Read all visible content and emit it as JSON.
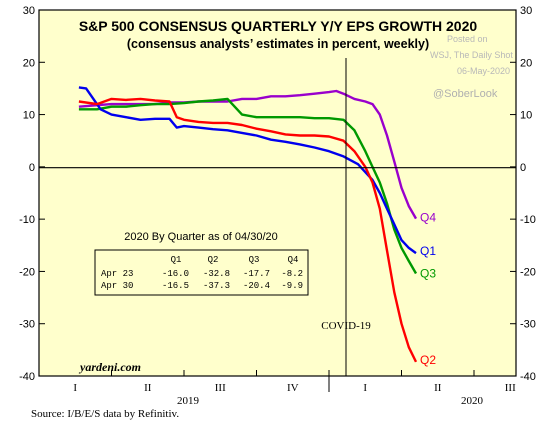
{
  "chart_data": {
    "type": "line",
    "title": "S&P 500 CONSENSUS QUARTERLY Y/Y EPS GROWTH 2020",
    "subtitle": "(consensus analysts’ estimates in percent, weekly)",
    "ylim": [
      -40,
      30
    ],
    "y_ticks": [
      "30",
      "20",
      "10",
      "0",
      "-10",
      "-20",
      "-30",
      "-40"
    ],
    "x_quarter_labels": [
      "I",
      "II",
      "III",
      "IV",
      "I",
      "II",
      "III"
    ],
    "x_year_labels": [
      "2019",
      "2020"
    ],
    "grid": false,
    "event_marker": "COVID-19",
    "brand": "yardeni.com",
    "source": "Source: I/B/E/S data by Refinitiv.",
    "watermark": [
      "Posted on",
      "WSJ, The Daily Shot",
      "06-May-2020"
    ],
    "handle": "@SoberLook",
    "colors": {
      "background": "#ffffcc",
      "Q1": "#0000ee",
      "Q2": "#ff0000",
      "Q3": "#009900",
      "Q4": "#9900cc"
    },
    "series": [
      {
        "name": "Q1",
        "x": [
          0.55,
          0.65,
          0.75,
          0.85,
          1.0,
          1.2,
          1.4,
          1.6,
          1.8,
          1.9,
          2.0,
          2.2,
          2.4,
          2.6,
          2.8,
          3.0,
          3.2,
          3.4,
          3.6,
          3.8,
          4.0,
          4.2,
          4.4,
          4.6,
          4.7,
          4.8,
          4.9,
          5.0,
          5.1,
          5.2
        ],
        "values": [
          15.2,
          15.0,
          13.0,
          11.0,
          10.0,
          9.5,
          9.0,
          9.2,
          9.2,
          7.5,
          7.8,
          7.5,
          7.2,
          7.0,
          6.5,
          6.0,
          5.2,
          4.8,
          4.3,
          3.7,
          3.0,
          2.0,
          0.5,
          -2.5,
          -5.0,
          -8.0,
          -11.0,
          -14.0,
          -15.5,
          -16.5
        ]
      },
      {
        "name": "Q2",
        "x": [
          0.55,
          0.8,
          1.0,
          1.2,
          1.4,
          1.6,
          1.8,
          1.9,
          2.0,
          2.2,
          2.4,
          2.6,
          2.8,
          3.0,
          3.2,
          3.4,
          3.6,
          3.8,
          4.0,
          4.2,
          4.35,
          4.5,
          4.6,
          4.7,
          4.8,
          4.9,
          5.0,
          5.1,
          5.2
        ],
        "values": [
          12.5,
          12.0,
          13.0,
          12.8,
          13.0,
          12.7,
          12.5,
          9.5,
          9.0,
          8.6,
          8.4,
          8.4,
          8.0,
          7.3,
          6.8,
          6.2,
          6.0,
          6.0,
          5.8,
          5.0,
          3.0,
          0.0,
          -3.0,
          -8.0,
          -16.0,
          -24.0,
          -30.0,
          -34.5,
          -37.3
        ]
      },
      {
        "name": "Q3",
        "x": [
          0.55,
          0.8,
          1.0,
          1.2,
          1.4,
          1.6,
          1.8,
          2.0,
          2.2,
          2.4,
          2.6,
          2.8,
          3.0,
          3.2,
          3.4,
          3.6,
          3.8,
          4.0,
          4.2,
          4.35,
          4.5,
          4.6,
          4.7,
          4.8,
          4.9,
          5.0,
          5.1,
          5.2
        ],
        "values": [
          11.0,
          11.0,
          11.5,
          11.5,
          11.8,
          12.0,
          12.0,
          12.2,
          12.5,
          12.7,
          13.0,
          10.0,
          9.5,
          9.5,
          9.5,
          9.5,
          9.3,
          9.3,
          9.0,
          7.0,
          3.0,
          0.0,
          -3.0,
          -7.0,
          -12.0,
          -15.5,
          -18.0,
          -20.4
        ]
      },
      {
        "name": "Q4",
        "x": [
          0.55,
          0.8,
          1.0,
          1.2,
          1.4,
          1.6,
          1.8,
          2.0,
          2.2,
          2.4,
          2.6,
          2.8,
          3.0,
          3.2,
          3.4,
          3.6,
          3.8,
          4.0,
          4.1,
          4.2,
          4.35,
          4.5,
          4.6,
          4.7,
          4.8,
          4.9,
          5.0,
          5.1,
          5.2
        ],
        "values": [
          11.5,
          11.8,
          12.0,
          12.0,
          12.0,
          12.0,
          12.3,
          12.3,
          12.5,
          12.5,
          12.5,
          13.0,
          13.0,
          13.5,
          13.5,
          13.7,
          14.0,
          14.3,
          14.5,
          14.0,
          13.0,
          12.5,
          12.0,
          10.0,
          6.0,
          1.0,
          -4.0,
          -7.5,
          -9.9
        ]
      }
    ],
    "table": {
      "title": "2020 By Quarter as of 04/30/20",
      "headers": [
        "Q1",
        "Q2",
        "Q3",
        "Q4"
      ],
      "rows": [
        {
          "label": "Apr 23",
          "values": [
            "-16.0",
            "-32.8",
            "-17.7",
            "-8.2"
          ]
        },
        {
          "label": "Apr 30",
          "values": [
            "-16.5",
            "-37.3",
            "-20.4",
            "-9.9"
          ]
        }
      ]
    }
  }
}
